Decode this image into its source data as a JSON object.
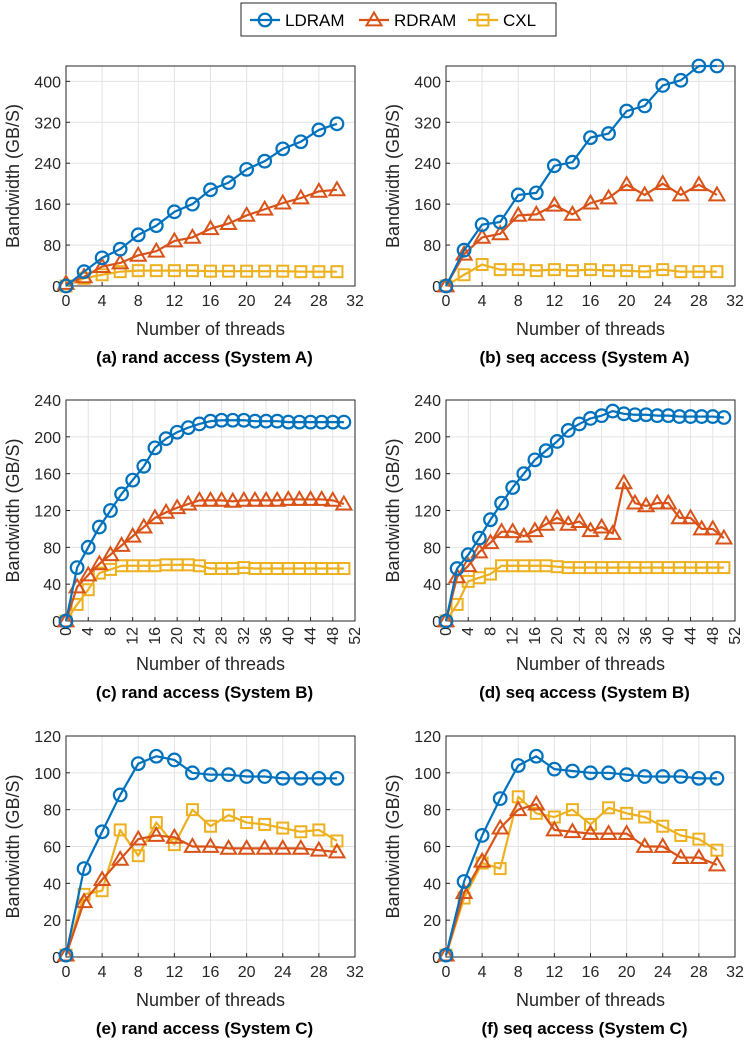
{
  "legend": {
    "entries": [
      {
        "name": "LDRAM",
        "color": "#0072BD",
        "marker": "circle"
      },
      {
        "name": "RDRAM",
        "color": "#D95319",
        "marker": "triangle"
      },
      {
        "name": "CXL",
        "color": "#EDB120",
        "marker": "square"
      }
    ]
  },
  "chart_data": [
    {
      "type": "line",
      "caption": "(a) rand access (System A)",
      "xlabel": "Number of threads",
      "ylabel": "Bandwidth (GB/S)",
      "xlim": [
        0,
        32
      ],
      "ylim": [
        0,
        430
      ],
      "xticks": [
        0,
        4,
        8,
        12,
        16,
        20,
        24,
        28,
        32
      ],
      "yticks": [
        0,
        80,
        160,
        240,
        320,
        400
      ],
      "grid": true,
      "x": [
        0,
        2,
        4,
        6,
        8,
        10,
        12,
        14,
        16,
        18,
        20,
        22,
        24,
        26,
        28,
        30
      ],
      "series": [
        {
          "name": "LDRAM",
          "values": [
            0,
            28,
            55,
            72,
            100,
            118,
            145,
            160,
            188,
            202,
            228,
            244,
            268,
            282,
            305,
            317
          ]
        },
        {
          "name": "RDRAM",
          "values": [
            5,
            18,
            38,
            45,
            60,
            68,
            88,
            95,
            112,
            122,
            138,
            150,
            162,
            172,
            185,
            188
          ]
        },
        {
          "name": "CXL",
          "values": [
            0,
            15,
            22,
            28,
            30,
            30,
            30,
            30,
            29,
            29,
            29,
            29,
            29,
            28,
            28,
            28
          ]
        }
      ]
    },
    {
      "type": "line",
      "caption": "(b) seq access (System A)",
      "xlabel": "Number of threads",
      "ylabel": "Bandwidth (GB/S)",
      "xlim": [
        0,
        32
      ],
      "ylim": [
        0,
        430
      ],
      "xticks": [
        0,
        4,
        8,
        12,
        16,
        20,
        24,
        28,
        32
      ],
      "yticks": [
        0,
        80,
        160,
        240,
        320,
        400
      ],
      "grid": true,
      "x": [
        0,
        2,
        4,
        6,
        8,
        10,
        12,
        14,
        16,
        18,
        20,
        22,
        24,
        26,
        28,
        30
      ],
      "series": [
        {
          "name": "LDRAM",
          "values": [
            0,
            70,
            120,
            125,
            178,
            182,
            235,
            242,
            290,
            298,
            342,
            352,
            392,
            402,
            430,
            430
          ]
        },
        {
          "name": "RDRAM",
          "values": [
            0,
            62,
            95,
            102,
            138,
            140,
            158,
            140,
            162,
            172,
            198,
            178,
            200,
            178,
            198,
            178
          ]
        },
        {
          "name": "CXL",
          "values": [
            0,
            22,
            42,
            32,
            32,
            30,
            32,
            30,
            32,
            30,
            30,
            28,
            32,
            28,
            28,
            28
          ]
        }
      ]
    },
    {
      "type": "line",
      "caption": "(c) rand access (System B)",
      "xlabel": "Number of threads",
      "ylabel": "Bandwidth (GB/S)",
      "xlim": [
        0,
        52
      ],
      "ylim": [
        0,
        240
      ],
      "xticks": [
        0,
        4,
        8,
        12,
        16,
        20,
        24,
        28,
        32,
        36,
        40,
        44,
        48,
        52
      ],
      "yticks": [
        0,
        40,
        80,
        120,
        160,
        200,
        240
      ],
      "grid": true,
      "x": [
        0,
        2,
        4,
        6,
        8,
        10,
        12,
        14,
        16,
        18,
        20,
        22,
        24,
        26,
        28,
        30,
        32,
        34,
        36,
        38,
        40,
        42,
        44,
        46,
        48,
        50
      ],
      "series": [
        {
          "name": "LDRAM",
          "values": [
            0,
            58,
            80,
            102,
            120,
            138,
            153,
            168,
            188,
            198,
            205,
            210,
            214,
            217,
            218,
            218,
            218,
            217,
            217,
            217,
            216,
            216,
            216,
            216,
            216,
            216
          ]
        },
        {
          "name": "RDRAM",
          "values": [
            0,
            37,
            50,
            62,
            72,
            82,
            92,
            102,
            112,
            118,
            123,
            127,
            131,
            131,
            131,
            130,
            131,
            131,
            131,
            131,
            132,
            132,
            132,
            132,
            131,
            127
          ]
        },
        {
          "name": "CXL",
          "values": [
            0,
            18,
            34,
            52,
            56,
            60,
            60,
            60,
            60,
            61,
            61,
            61,
            60,
            57,
            57,
            57,
            58,
            57,
            57,
            57,
            57,
            57,
            57,
            57,
            57,
            57
          ]
        }
      ]
    },
    {
      "type": "line",
      "caption": "(d) seq access (System B)",
      "xlabel": "Number of threads",
      "ylabel": "Bandwidth (GB/S)",
      "xlim": [
        0,
        52
      ],
      "ylim": [
        0,
        240
      ],
      "xticks": [
        0,
        4,
        8,
        12,
        16,
        20,
        24,
        28,
        32,
        36,
        40,
        44,
        48,
        52
      ],
      "yticks": [
        0,
        40,
        80,
        120,
        160,
        200,
        240
      ],
      "grid": true,
      "x": [
        0,
        2,
        4,
        6,
        8,
        10,
        12,
        14,
        16,
        18,
        20,
        22,
        24,
        26,
        28,
        30,
        32,
        34,
        36,
        38,
        40,
        42,
        44,
        46,
        48,
        50
      ],
      "series": [
        {
          "name": "LDRAM",
          "values": [
            0,
            57,
            72,
            90,
            110,
            128,
            145,
            160,
            175,
            185,
            195,
            207,
            214,
            220,
            223,
            228,
            225,
            224,
            224,
            223,
            223,
            222,
            222,
            222,
            222,
            221
          ]
        },
        {
          "name": "RDRAM",
          "values": [
            0,
            48,
            60,
            75,
            85,
            97,
            97,
            92,
            98,
            105,
            112,
            105,
            108,
            98,
            102,
            95,
            150,
            128,
            125,
            128,
            128,
            112,
            112,
            100,
            100,
            90
          ]
        },
        {
          "name": "CXL",
          "values": [
            0,
            18,
            43,
            47,
            51,
            60,
            60,
            60,
            60,
            60,
            59,
            58,
            58,
            58,
            58,
            58,
            58,
            58,
            58,
            58,
            58,
            58,
            58,
            58,
            58,
            58
          ]
        }
      ]
    },
    {
      "type": "line",
      "caption": "(e) rand access (System C)",
      "xlabel": "Number of threads",
      "ylabel": "Bandwidth (GB/S)",
      "xlim": [
        0,
        32
      ],
      "ylim": [
        0,
        120
      ],
      "xticks": [
        0,
        4,
        8,
        12,
        16,
        20,
        24,
        28,
        32
      ],
      "yticks": [
        0,
        20,
        40,
        60,
        80,
        100,
        120
      ],
      "grid": true,
      "x": [
        0,
        2,
        4,
        6,
        8,
        10,
        12,
        14,
        16,
        18,
        20,
        22,
        24,
        26,
        28,
        30
      ],
      "series": [
        {
          "name": "LDRAM",
          "values": [
            1,
            48,
            68,
            88,
            105,
            109,
            107,
            100,
            99,
            99,
            98,
            98,
            97,
            97,
            97,
            97
          ]
        },
        {
          "name": "RDRAM",
          "values": [
            1,
            30,
            42,
            53,
            64,
            66,
            65,
            60,
            60,
            59,
            59,
            59,
            59,
            59,
            58,
            57
          ]
        },
        {
          "name": "CXL",
          "values": [
            1,
            34,
            36,
            69,
            55,
            73,
            61,
            80,
            71,
            77,
            73,
            72,
            70,
            68,
            69,
            63
          ]
        }
      ]
    },
    {
      "type": "line",
      "caption": "(f) seq access (System C)",
      "xlabel": "Number of threads",
      "ylabel": "Bandwidth (GB/S)",
      "xlim": [
        0,
        32
      ],
      "ylim": [
        0,
        120
      ],
      "xticks": [
        0,
        4,
        8,
        12,
        16,
        20,
        24,
        28,
        32
      ],
      "yticks": [
        0,
        20,
        40,
        60,
        80,
        100,
        120
      ],
      "grid": true,
      "x": [
        0,
        2,
        4,
        6,
        8,
        10,
        12,
        14,
        16,
        18,
        20,
        22,
        24,
        26,
        28,
        30
      ],
      "series": [
        {
          "name": "LDRAM",
          "values": [
            1,
            41,
            66,
            86,
            104,
            109,
            102,
            101,
            100,
            100,
            99,
            98,
            98,
            98,
            97,
            97
          ]
        },
        {
          "name": "RDRAM",
          "values": [
            1,
            35,
            52,
            70,
            80,
            83,
            69,
            68,
            67,
            67,
            67,
            60,
            60,
            54,
            54,
            50
          ]
        },
        {
          "name": "CXL",
          "values": [
            1,
            32,
            51,
            48,
            87,
            78,
            76,
            80,
            72,
            81,
            78,
            76,
            71,
            66,
            64,
            58
          ]
        }
      ]
    }
  ]
}
